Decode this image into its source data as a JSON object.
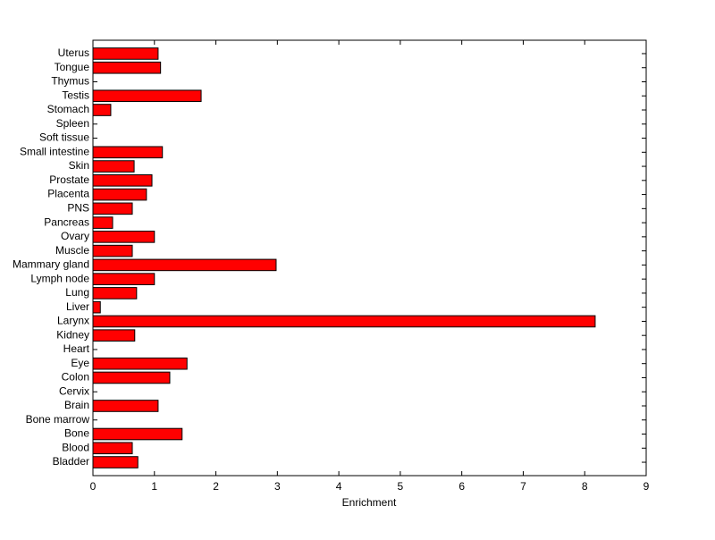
{
  "chart_data": {
    "type": "barh",
    "xlabel": "Enrichment",
    "categories": [
      "Bladder",
      "Blood",
      "Bone",
      "Bone marrow",
      "Brain",
      "Cervix",
      "Colon",
      "Eye",
      "Heart",
      "Kidney",
      "Larynx",
      "Liver",
      "Lung",
      "Lymph node",
      "Mammary gland",
      "Muscle",
      "Ovary",
      "Pancreas",
      "PNS",
      "Placenta",
      "Prostate",
      "Skin",
      "Small intestine",
      "Soft tissue",
      "Spleen",
      "Stomach",
      "Testis",
      "Thymus",
      "Tongue",
      "Uterus"
    ],
    "values": [
      0.73,
      0.64,
      1.45,
      0,
      1.06,
      0,
      1.25,
      1.53,
      0,
      0.68,
      8.17,
      0.12,
      0.71,
      1.0,
      2.98,
      0.64,
      1.0,
      0.32,
      0.64,
      0.87,
      0.96,
      0.67,
      1.13,
      0,
      0,
      0.29,
      1.76,
      0,
      1.1,
      1.06
    ],
    "color": "#ff0000",
    "xlim": [
      0,
      9
    ],
    "xticks": [
      0,
      1,
      2,
      3,
      4,
      5,
      6,
      7,
      8,
      9
    ],
    "grid": false
  }
}
